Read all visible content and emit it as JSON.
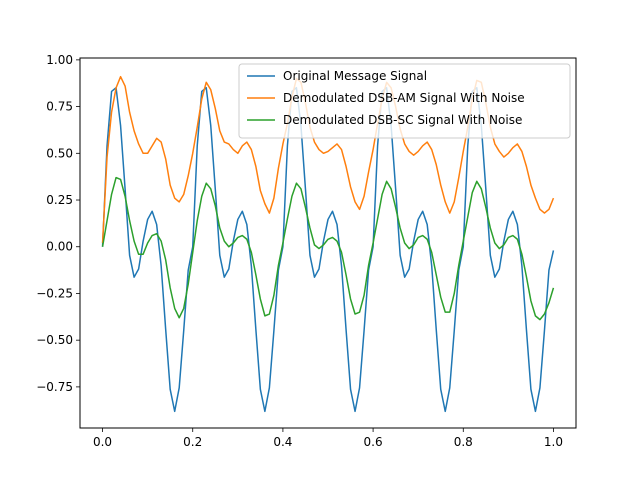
{
  "chart_data": {
    "type": "line",
    "title": "",
    "xlabel": "",
    "ylabel": "",
    "xlim": [
      -0.05,
      1.05
    ],
    "ylim": [
      -0.97,
      1.01
    ],
    "grid": false,
    "legend_position": "top-right",
    "x_ticks": [
      0.0,
      0.2,
      0.4,
      0.6,
      0.8,
      1.0
    ],
    "x_tick_labels": [
      "0.0",
      "0.2",
      "0.4",
      "0.6",
      "0.8",
      "1.0"
    ],
    "y_ticks": [
      -0.75,
      -0.5,
      -0.25,
      0.0,
      0.25,
      0.5,
      0.75,
      1.0
    ],
    "y_tick_labels": [
      "−0.75",
      "−0.50",
      "−0.25",
      "0.00",
      "0.25",
      "0.50",
      "0.75",
      "1.00"
    ],
    "series": [
      {
        "name": "Original Message Signal",
        "color": "#1f77b4",
        "x": [
          0.0,
          0.01,
          0.02,
          0.03,
          0.04,
          0.05,
          0.06,
          0.07,
          0.08,
          0.09,
          0.1,
          0.11,
          0.12,
          0.13,
          0.14,
          0.15,
          0.16,
          0.17,
          0.18,
          0.19,
          0.2,
          0.21,
          0.22,
          0.23,
          0.24,
          0.25,
          0.26,
          0.27,
          0.28,
          0.29,
          0.3,
          0.31,
          0.32,
          0.33,
          0.34,
          0.35,
          0.36,
          0.37,
          0.38,
          0.39,
          0.4,
          0.41,
          0.42,
          0.43,
          0.44,
          0.45,
          0.46,
          0.47,
          0.48,
          0.49,
          0.5,
          0.51,
          0.52,
          0.53,
          0.54,
          0.55,
          0.56,
          0.57,
          0.58,
          0.59,
          0.6,
          0.61,
          0.62,
          0.63,
          0.64,
          0.65,
          0.66,
          0.67,
          0.68,
          0.69,
          0.7,
          0.71,
          0.72,
          0.73,
          0.74,
          0.75,
          0.76,
          0.77,
          0.78,
          0.79,
          0.8,
          0.81,
          0.82,
          0.83,
          0.84,
          0.85,
          0.86,
          0.87,
          0.88,
          0.89,
          0.9,
          0.91,
          0.92,
          0.93,
          0.94,
          0.95,
          0.96,
          0.97,
          0.98,
          0.99,
          1.0
        ],
        "y": [
          0.0,
          0.541,
          0.831,
          0.851,
          0.648,
          0.309,
          -0.046,
          -0.163,
          -0.119,
          0.03,
          0.146,
          0.19,
          0.119,
          -0.103,
          -0.442,
          -0.763,
          -0.881,
          -0.755,
          -0.449,
          -0.125,
          0.0,
          0.541,
          0.831,
          0.851,
          0.648,
          0.309,
          -0.046,
          -0.163,
          -0.119,
          0.03,
          0.146,
          0.19,
          0.119,
          -0.103,
          -0.442,
          -0.763,
          -0.881,
          -0.755,
          -0.449,
          -0.125,
          0.0,
          0.541,
          0.831,
          0.851,
          0.648,
          0.309,
          -0.046,
          -0.163,
          -0.119,
          0.03,
          0.146,
          0.19,
          0.119,
          -0.103,
          -0.442,
          -0.763,
          -0.881,
          -0.755,
          -0.449,
          -0.125,
          0.0,
          0.541,
          0.831,
          0.851,
          0.648,
          0.309,
          -0.046,
          -0.163,
          -0.119,
          0.03,
          0.146,
          0.19,
          0.119,
          -0.103,
          -0.442,
          -0.763,
          -0.881,
          -0.755,
          -0.449,
          -0.125,
          0.0,
          0.541,
          0.831,
          0.851,
          0.648,
          0.309,
          -0.046,
          -0.163,
          -0.119,
          0.03,
          0.146,
          0.19,
          0.119,
          -0.103,
          -0.442,
          -0.763,
          -0.881,
          -0.755,
          -0.449,
          -0.125,
          -0.02
        ]
      },
      {
        "name": "Demodulated DSB-AM Signal With Noise",
        "color": "#ff7f0e",
        "x": [
          0.0,
          0.01,
          0.02,
          0.03,
          0.04,
          0.05,
          0.06,
          0.07,
          0.08,
          0.09,
          0.1,
          0.11,
          0.12,
          0.13,
          0.14,
          0.15,
          0.16,
          0.17,
          0.18,
          0.19,
          0.2,
          0.21,
          0.22,
          0.23,
          0.24,
          0.25,
          0.26,
          0.27,
          0.28,
          0.29,
          0.3,
          0.31,
          0.32,
          0.33,
          0.34,
          0.35,
          0.36,
          0.37,
          0.38,
          0.39,
          0.4,
          0.41,
          0.42,
          0.43,
          0.44,
          0.45,
          0.46,
          0.47,
          0.48,
          0.49,
          0.5,
          0.51,
          0.52,
          0.53,
          0.54,
          0.55,
          0.56,
          0.57,
          0.58,
          0.59,
          0.6,
          0.61,
          0.62,
          0.63,
          0.64,
          0.65,
          0.66,
          0.67,
          0.68,
          0.69,
          0.7,
          0.71,
          0.72,
          0.73,
          0.74,
          0.75,
          0.76,
          0.77,
          0.78,
          0.79,
          0.8,
          0.81,
          0.82,
          0.83,
          0.84,
          0.85,
          0.86,
          0.87,
          0.88,
          0.89,
          0.9,
          0.91,
          0.92,
          0.93,
          0.94,
          0.95,
          0.96,
          0.97,
          0.98,
          0.99,
          1.0
        ],
        "y": [
          0.02,
          0.48,
          0.72,
          0.85,
          0.91,
          0.86,
          0.72,
          0.62,
          0.55,
          0.5,
          0.5,
          0.54,
          0.58,
          0.56,
          0.47,
          0.33,
          0.26,
          0.24,
          0.28,
          0.38,
          0.5,
          0.64,
          0.79,
          0.88,
          0.84,
          0.74,
          0.62,
          0.56,
          0.55,
          0.52,
          0.5,
          0.54,
          0.56,
          0.52,
          0.43,
          0.3,
          0.23,
          0.18,
          0.26,
          0.42,
          0.55,
          0.66,
          0.8,
          0.9,
          0.88,
          0.77,
          0.64,
          0.56,
          0.52,
          0.5,
          0.51,
          0.53,
          0.55,
          0.52,
          0.43,
          0.32,
          0.24,
          0.2,
          0.27,
          0.4,
          0.52,
          0.66,
          0.79,
          0.88,
          0.85,
          0.75,
          0.63,
          0.55,
          0.51,
          0.49,
          0.51,
          0.54,
          0.56,
          0.52,
          0.44,
          0.33,
          0.24,
          0.18,
          0.24,
          0.37,
          0.51,
          0.64,
          0.79,
          0.89,
          0.88,
          0.77,
          0.64,
          0.55,
          0.51,
          0.48,
          0.5,
          0.53,
          0.55,
          0.51,
          0.43,
          0.33,
          0.26,
          0.2,
          0.18,
          0.2,
          0.26
        ]
      },
      {
        "name": "Demodulated DSB-SC Signal With Noise",
        "color": "#2ca02c",
        "x": [
          0.0,
          0.01,
          0.02,
          0.03,
          0.04,
          0.05,
          0.06,
          0.07,
          0.08,
          0.09,
          0.1,
          0.11,
          0.12,
          0.13,
          0.14,
          0.15,
          0.16,
          0.17,
          0.18,
          0.19,
          0.2,
          0.21,
          0.22,
          0.23,
          0.24,
          0.25,
          0.26,
          0.27,
          0.28,
          0.29,
          0.3,
          0.31,
          0.32,
          0.33,
          0.34,
          0.35,
          0.36,
          0.37,
          0.38,
          0.39,
          0.4,
          0.41,
          0.42,
          0.43,
          0.44,
          0.45,
          0.46,
          0.47,
          0.48,
          0.49,
          0.5,
          0.51,
          0.52,
          0.53,
          0.54,
          0.55,
          0.56,
          0.57,
          0.58,
          0.59,
          0.6,
          0.61,
          0.62,
          0.63,
          0.64,
          0.65,
          0.66,
          0.67,
          0.68,
          0.69,
          0.7,
          0.71,
          0.72,
          0.73,
          0.74,
          0.75,
          0.76,
          0.77,
          0.78,
          0.79,
          0.8,
          0.81,
          0.82,
          0.83,
          0.84,
          0.85,
          0.86,
          0.87,
          0.88,
          0.89,
          0.9,
          0.91,
          0.92,
          0.93,
          0.94,
          0.95,
          0.96,
          0.97,
          0.98,
          0.99,
          1.0
        ],
        "y": [
          0.0,
          0.14,
          0.28,
          0.37,
          0.36,
          0.27,
          0.14,
          0.03,
          -0.04,
          -0.04,
          0.02,
          0.06,
          0.07,
          0.03,
          -0.07,
          -0.22,
          -0.33,
          -0.38,
          -0.33,
          -0.2,
          -0.03,
          0.14,
          0.27,
          0.34,
          0.31,
          0.22,
          0.1,
          0.03,
          0.0,
          0.02,
          0.05,
          0.06,
          0.04,
          -0.03,
          -0.15,
          -0.28,
          -0.37,
          -0.36,
          -0.26,
          -0.1,
          0.02,
          0.15,
          0.27,
          0.34,
          0.31,
          0.21,
          0.1,
          0.01,
          -0.01,
          0.01,
          0.04,
          0.05,
          0.03,
          -0.03,
          -0.15,
          -0.28,
          -0.36,
          -0.35,
          -0.26,
          -0.1,
          0.02,
          0.15,
          0.28,
          0.35,
          0.31,
          0.21,
          0.1,
          0.02,
          -0.01,
          0.01,
          0.05,
          0.06,
          0.04,
          -0.03,
          -0.15,
          -0.27,
          -0.35,
          -0.35,
          -0.25,
          -0.1,
          0.03,
          0.16,
          0.29,
          0.35,
          0.31,
          0.21,
          0.1,
          0.02,
          -0.01,
          0.01,
          0.05,
          0.06,
          0.04,
          -0.04,
          -0.16,
          -0.29,
          -0.37,
          -0.39,
          -0.36,
          -0.3,
          -0.22
        ]
      }
    ]
  }
}
